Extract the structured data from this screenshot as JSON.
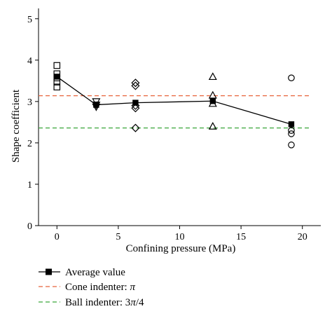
{
  "chart_data": {
    "type": "scatter",
    "xlabel": "Confining pressure (MPa)",
    "ylabel": "Shape coefficient",
    "xlim": [
      -1.5,
      21.5
    ],
    "ylim": [
      0,
      5.25
    ],
    "x_ticks": [
      0,
      5,
      10,
      15,
      20
    ],
    "y_ticks": [
      0,
      1,
      2,
      3,
      4,
      5
    ],
    "grid": false,
    "legend_position": "bottom",
    "series": [
      {
        "name": "Average value",
        "kind": "line-marker",
        "marker": "filled-square",
        "color": "#000000",
        "points": [
          [
            0,
            3.6
          ],
          [
            3.2,
            2.92
          ],
          [
            6.4,
            2.97
          ],
          [
            12.7,
            3.01
          ],
          [
            19.1,
            2.45
          ]
        ]
      },
      {
        "name": "Cone indenter: π",
        "kind": "hline",
        "value": 3.14,
        "color": "#e8643c",
        "dash": "dashed"
      },
      {
        "name": "Ball indenter: 3π/4",
        "kind": "hline",
        "value": 2.36,
        "color": "#3aa63a",
        "dash": "dashed"
      },
      {
        "kind": "scatter",
        "marker": "open-square",
        "color": "#000000",
        "points": [
          [
            0,
            3.87
          ],
          [
            0,
            3.67
          ],
          [
            0,
            3.57
          ],
          [
            0,
            3.47
          ],
          [
            0,
            3.35
          ]
        ]
      },
      {
        "kind": "scatter",
        "marker": "open-triangle-down",
        "color": "#000000",
        "points": [
          [
            3.2,
            3.0
          ],
          [
            3.2,
            2.92
          ],
          [
            3.2,
            2.87
          ]
        ]
      },
      {
        "kind": "scatter",
        "marker": "open-diamond",
        "color": "#000000",
        "points": [
          [
            6.4,
            3.45
          ],
          [
            6.4,
            3.38
          ],
          [
            6.4,
            2.9
          ],
          [
            6.4,
            2.84
          ],
          [
            6.4,
            2.36
          ]
        ]
      },
      {
        "kind": "scatter",
        "marker": "open-triangle-up",
        "color": "#000000",
        "points": [
          [
            12.7,
            3.6
          ],
          [
            12.7,
            3.15
          ],
          [
            12.7,
            2.95
          ],
          [
            12.7,
            2.4
          ]
        ]
      },
      {
        "kind": "scatter",
        "marker": "open-circle",
        "color": "#000000",
        "points": [
          [
            19.1,
            3.57
          ],
          [
            19.1,
            2.3
          ],
          [
            19.1,
            2.22
          ],
          [
            19.1,
            1.95
          ]
        ]
      }
    ]
  },
  "legend": {
    "average_label": "Average value",
    "cone_label": "Cone indenter: ",
    "cone_symbol": "π",
    "ball_label": "Ball indenter: 3",
    "ball_symbol": "π",
    "ball_suffix": "/4"
  }
}
